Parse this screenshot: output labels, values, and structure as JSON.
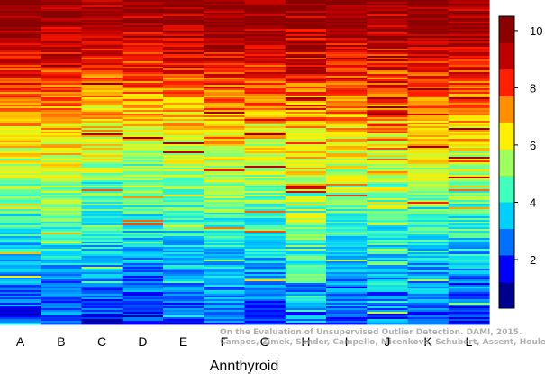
{
  "watermark": {
    "line1": "On the Evaluation of Unsupervised Outlier Detection. DAMI, 2015.",
    "line2": "Campos, Zimek, Sander, Campello, Micenková, Schubert, Assent, Houle"
  },
  "chart_data": {
    "type": "heatmap",
    "title": "",
    "xlabel": "Annthyroid",
    "ylabel": "",
    "categories": [
      "A",
      "B",
      "C",
      "D",
      "E",
      "F",
      "G",
      "H",
      "I",
      "J",
      "K",
      "L"
    ],
    "colorbar": {
      "range": [
        0.3,
        10.5
      ],
      "ticks": [
        2,
        4,
        6,
        8,
        10
      ],
      "tick_labels": [
        "2",
        "4",
        "6",
        "8",
        "10"
      ],
      "palette": [
        "#00008f",
        "#0000ff",
        "#0070ff",
        "#00cfff",
        "#40ffbf",
        "#a0ff60",
        "#ffef00",
        "#ff8f00",
        "#ff2000",
        "#bf0000",
        "#8b0000"
      ]
    },
    "series_profile": {
      "top_value": [
        10.4,
        10.2,
        10.0,
        9.9,
        10.0,
        10.3,
        10.2,
        10.2,
        10.3,
        10.3,
        10.3,
        10.3
      ],
      "bottom_value": [
        1.6,
        1.9,
        1.5,
        1.4,
        1.6,
        1.9,
        1.8,
        2.6,
        1.9,
        2.4,
        1.8,
        1.5
      ]
    }
  }
}
